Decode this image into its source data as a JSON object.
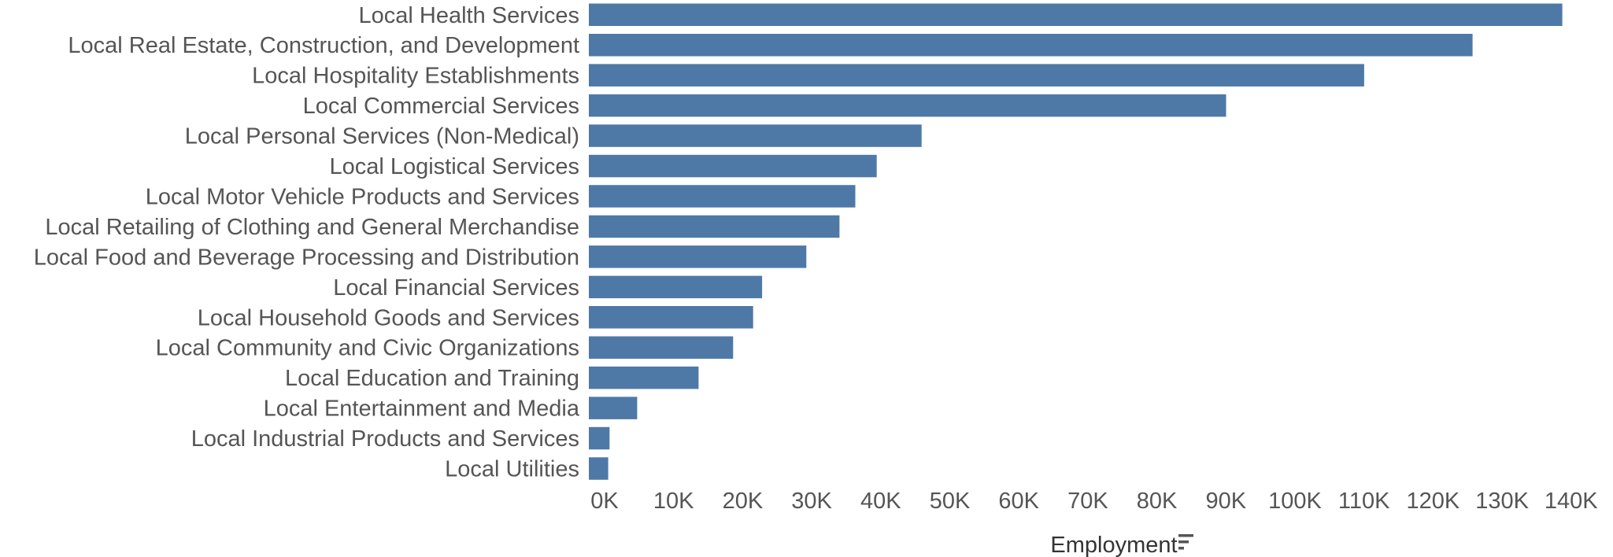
{
  "chart_data": {
    "type": "bar",
    "orientation": "horizontal",
    "categories": [
      "Local Health Services",
      "Local Real Estate, Construction, and Development",
      "Local Hospitality Establishments",
      "Local Commercial Services",
      "Local Personal Services (Non-Medical)",
      "Local Logistical Services",
      "Local Motor Vehicle Products and Services",
      "Local Retailing of Clothing and General Merchandise",
      "Local Food and Beverage Processing and Distribution",
      "Local Financial Services",
      "Local Household Goods and Services",
      "Local Community and Civic Organizations",
      "Local Education and Training",
      "Local Entertainment and Media",
      "Local Industrial Products and Services",
      "Local Utilities"
    ],
    "values": [
      141000,
      128000,
      112300,
      92300,
      48200,
      41700,
      38600,
      36300,
      31500,
      25100,
      23800,
      20900,
      15900,
      7000,
      3000,
      2800
    ],
    "xlabel": "Employment",
    "xlim": [
      0,
      145000
    ],
    "xticks": [
      0,
      10000,
      20000,
      30000,
      40000,
      50000,
      60000,
      70000,
      80000,
      90000,
      100000,
      110000,
      120000,
      130000,
      140000
    ],
    "xtick_labels": [
      "0K",
      "10K",
      "20K",
      "30K",
      "40K",
      "50K",
      "60K",
      "70K",
      "80K",
      "90K",
      "100K",
      "110K",
      "120K",
      "130K",
      "140K"
    ],
    "bar_color": "#4e79a7",
    "sorted": "descending",
    "sort_icon": "sort-descending-icon"
  }
}
